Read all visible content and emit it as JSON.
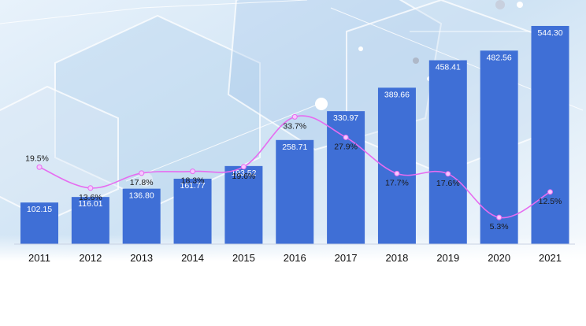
{
  "colors": {
    "bar": "#3f6fd6",
    "line": "#e66cf0",
    "point": "#f6c8ff",
    "axis": "#c9d2e3"
  },
  "chart_data": {
    "type": "bar",
    "categories": [
      "2011",
      "2012",
      "2013",
      "2014",
      "2015",
      "2016",
      "2017",
      "2018",
      "2019",
      "2020",
      "2021"
    ],
    "bar_labels": [
      "102.15",
      "116.01",
      "136.80",
      "161.77",
      "193.52",
      "258.71",
      "330.97",
      "389.66",
      "458.41",
      "482.56",
      "544.30"
    ],
    "percent_labels": [
      "19.5%",
      "13.6%",
      "17.8%",
      "18.3%",
      "19.6%",
      "33.7%",
      "27.9%",
      "17.7%",
      "17.6%",
      "5.3%",
      "12.5%"
    ],
    "series": [
      {
        "type": "bar",
        "values": [
          102.15,
          116.01,
          136.8,
          161.77,
          193.52,
          258.71,
          330.97,
          389.66,
          458.41,
          482.56,
          544.3
        ]
      },
      {
        "type": "line",
        "values": [
          19.5,
          13.6,
          17.8,
          18.3,
          19.6,
          33.7,
          27.9,
          17.7,
          17.6,
          5.3,
          12.5
        ]
      }
    ],
    "ylim": [
      0,
      560
    ],
    "ylim_secondary": [
      0,
      60
    ],
    "grid": false,
    "title": "",
    "xlabel": "",
    "ylabel": ""
  }
}
